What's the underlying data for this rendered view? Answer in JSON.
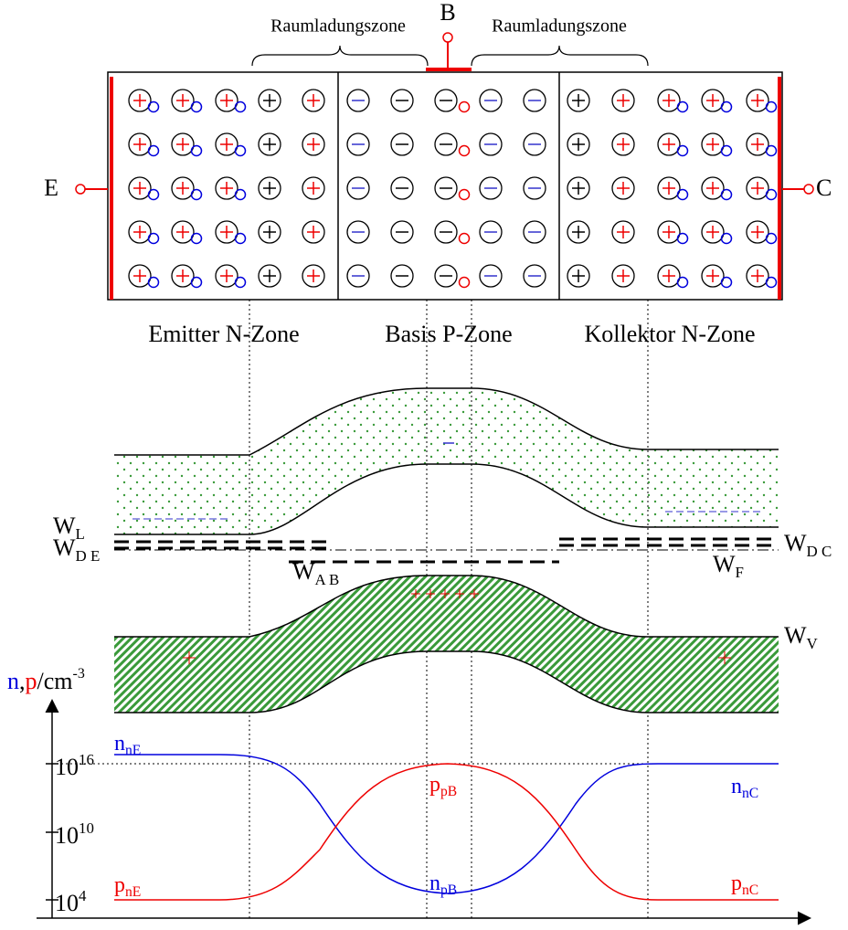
{
  "top": {
    "depletion_left": "Raumladungszone",
    "depletion_right": "Raumladungszone",
    "base_terminal": "B",
    "emitter_terminal": "E",
    "collector_terminal": "C",
    "zones": [
      "Emitter N-Zone",
      "Basis P-Zone",
      "Kollektor N-Zone"
    ]
  },
  "band_diagram": {
    "labels": [
      {
        "main": "W",
        "sub": "L"
      },
      {
        "main": "W",
        "sub": "D E"
      },
      {
        "main": "W",
        "sub": "A B"
      },
      {
        "main": "W",
        "sub": "F"
      },
      {
        "main": "W",
        "sub": "D C"
      },
      {
        "main": "W",
        "sub": "V"
      }
    ]
  },
  "carrier_plot": {
    "axis_label": {
      "n": "n",
      "comma": ",",
      "p": "p",
      "unit": "/cm",
      "exp": "-3"
    },
    "ticks": [
      {
        "base": "10",
        "exp": "16"
      },
      {
        "base": "10",
        "exp": "10"
      },
      {
        "base": "10",
        "exp": "4"
      }
    ],
    "curve_labels": [
      {
        "main": "n",
        "sub": "nE"
      },
      {
        "main": "p",
        "sub": "pB"
      },
      {
        "main": "n",
        "sub": "nC"
      },
      {
        "main": "n",
        "sub": "pB"
      },
      {
        "main": "p",
        "sub": "nE"
      },
      {
        "main": "p",
        "sub": "nC"
      }
    ]
  }
}
